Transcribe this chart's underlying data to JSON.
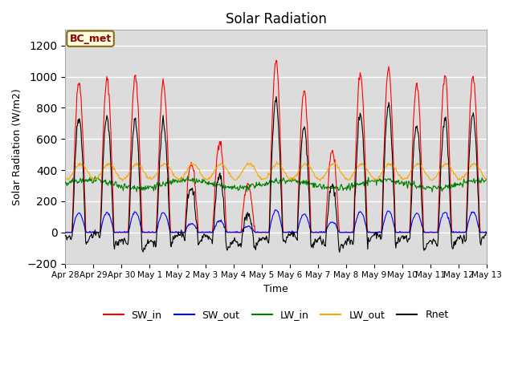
{
  "title": "Solar Radiation",
  "xlabel": "Time",
  "ylabel": "Solar Radiation (W/m2)",
  "ylim": [
    -200,
    1300
  ],
  "yticks": [
    -200,
    0,
    200,
    400,
    600,
    800,
    1000,
    1200
  ],
  "label": "BC_met",
  "series_labels": [
    "SW_in",
    "SW_out",
    "LW_in",
    "LW_out",
    "Rnet"
  ],
  "series_colors": [
    "red",
    "blue",
    "green",
    "orange",
    "black"
  ],
  "legend_labels": [
    "SW_in",
    "SW_out",
    "LW_in",
    "LW_out",
    "Rnet"
  ],
  "xtick_labels": [
    "Apr 28",
    "Apr 29",
    "Apr 30",
    "May 1",
    "May 2",
    "May 3",
    "May 4",
    "May 5",
    "May 6",
    "May 7",
    "May 8",
    "May 9",
    "May 10",
    "May 11",
    "May 12",
    "May 13"
  ],
  "n_days": 15,
  "pts_per_day": 48,
  "plot_bg": "#dcdcdc",
  "sw_in_peaks": [
    970,
    980,
    1000,
    960,
    440,
    590,
    300,
    1100,
    910,
    530,
    1020,
    1050,
    950,
    1010,
    1000
  ]
}
